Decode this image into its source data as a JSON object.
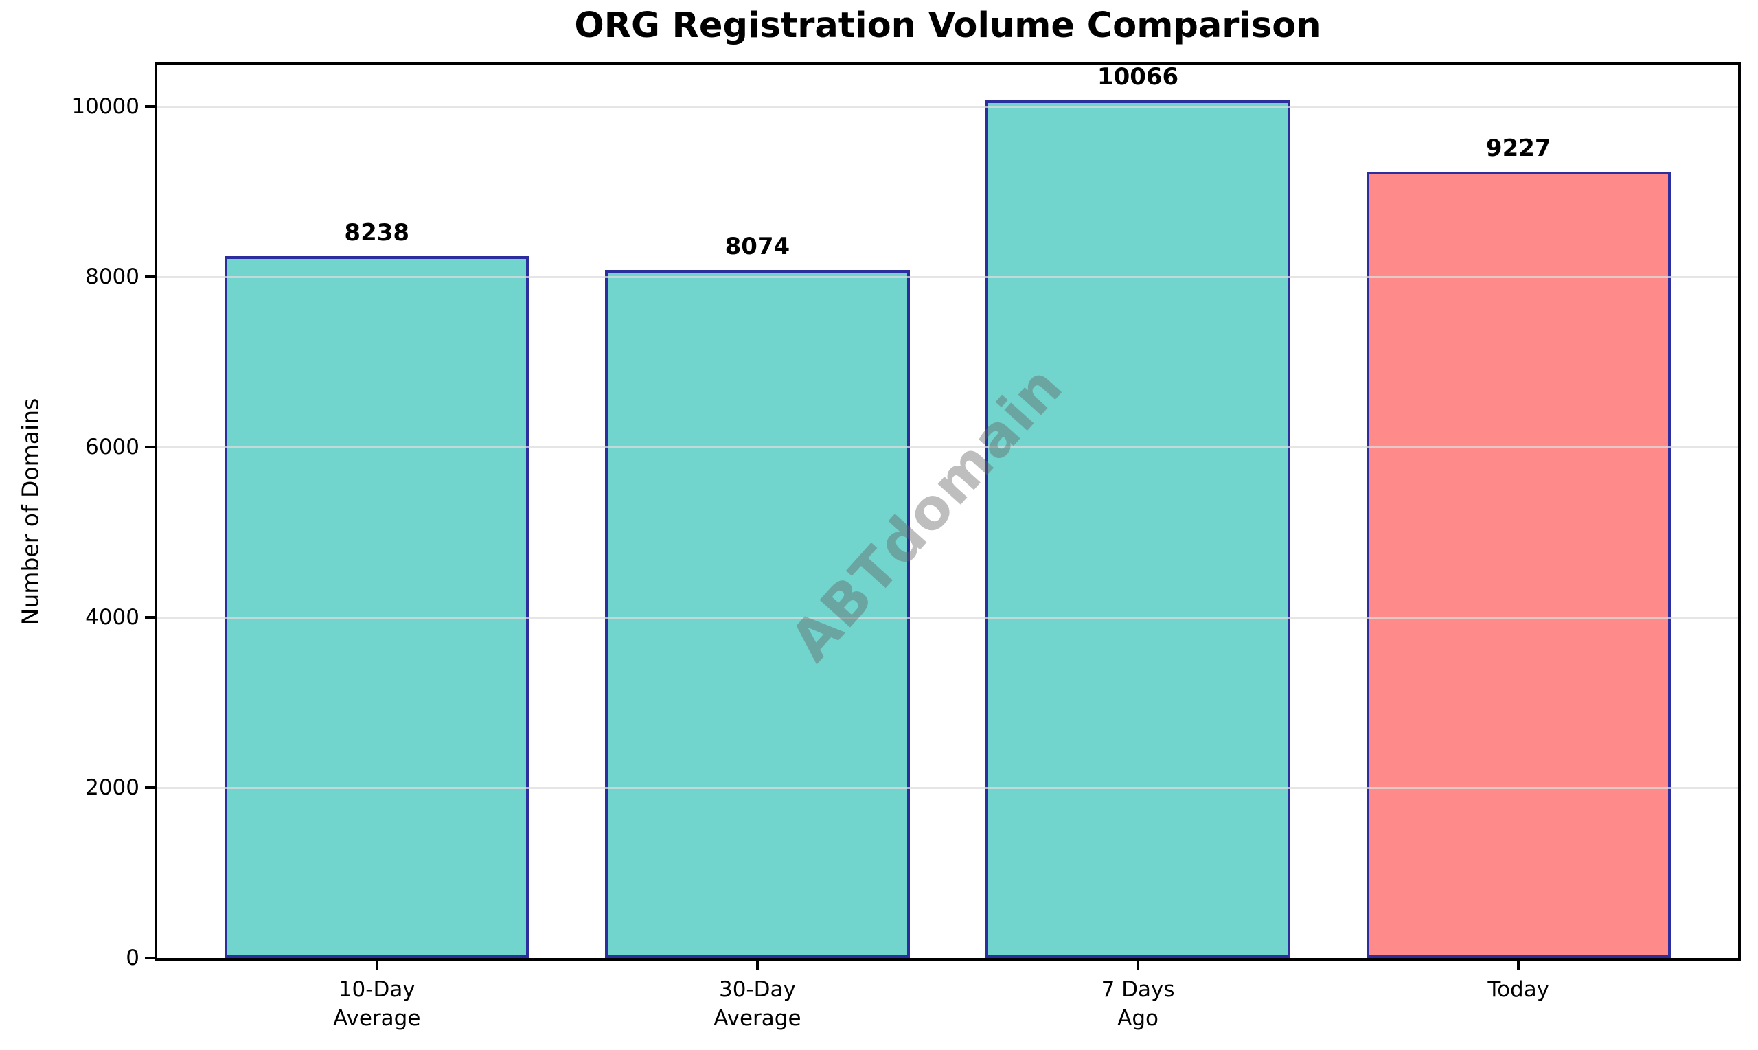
{
  "chart_data": {
    "type": "bar",
    "title": "ORG Registration Volume Comparison",
    "xlabel": "",
    "ylabel": "Number of Domains",
    "categories": [
      "10-Day\nAverage",
      "30-Day\nAverage",
      "7 Days\nAgo",
      "Today"
    ],
    "values": [
      8238,
      8074,
      10066,
      9227
    ],
    "bar_colors": [
      "#71D4CD",
      "#71D4CD",
      "#71D4CD",
      "#FF8A8A"
    ],
    "bar_edge_color": "#2B2E9C",
    "ylim": [
      0,
      10480
    ],
    "yticks": [
      0,
      2000,
      4000,
      6000,
      8000,
      10000
    ],
    "grid": true,
    "grid_axis": "y",
    "legend": "none",
    "watermark": "ABTdomain"
  }
}
